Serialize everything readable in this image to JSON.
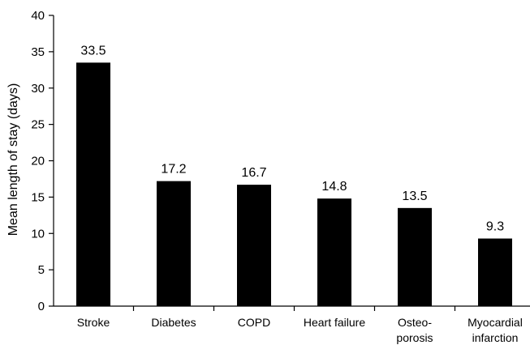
{
  "chart_data": {
    "type": "bar",
    "title": "",
    "xlabel": "",
    "ylabel": "Mean length of stay (days)",
    "ylim": [
      0,
      40
    ],
    "yticks": [
      0,
      5,
      10,
      15,
      20,
      25,
      30,
      35,
      40
    ],
    "ytick_labels": [
      "0",
      "5",
      "10",
      "15",
      "20",
      "25",
      "30",
      "35",
      "40"
    ],
    "grid": false,
    "legend": "none",
    "bar_color": "#000000",
    "categories": [
      [
        "Stroke"
      ],
      [
        "Diabetes"
      ],
      [
        "COPD"
      ],
      [
        "Heart failure"
      ],
      [
        "Osteo-",
        "porosis"
      ],
      [
        "Myocardial",
        "infarction"
      ]
    ],
    "values": [
      33.5,
      17.2,
      16.7,
      14.8,
      13.5,
      9.3
    ],
    "data_labels": [
      "33.5",
      "17.2",
      "16.7",
      "14.8",
      "13.5",
      "9.3"
    ]
  }
}
